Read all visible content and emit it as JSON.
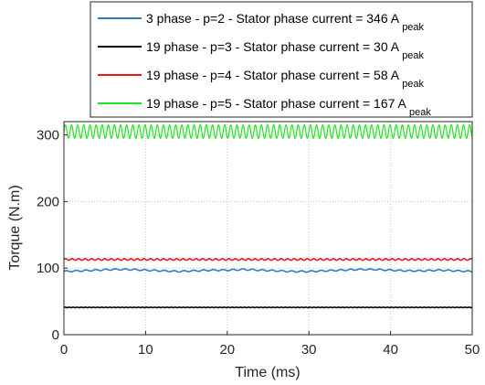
{
  "chart_data": {
    "type": "line",
    "title": "",
    "xlabel": "Time (ms)",
    "ylabel": "Torque (N.m)",
    "xlim": [
      0,
      50
    ],
    "ylim": [
      0,
      320
    ],
    "xticks": [
      0,
      10,
      20,
      30,
      40,
      50
    ],
    "yticks": [
      0,
      100,
      200,
      300
    ],
    "grid": true,
    "legend_position": "top",
    "series": [
      {
        "name": "3 phase - p=2 - Stator phase current = 346 A",
        "name_subscript": "peak",
        "color": "#2e7cbe",
        "x": [
          0,
          2,
          4,
          6,
          8,
          10,
          12,
          14,
          16,
          18,
          20,
          22,
          24,
          26,
          28,
          30,
          32,
          34,
          36,
          38,
          40,
          42,
          44,
          46,
          48,
          50
        ],
        "y": [
          95,
          96,
          97,
          98,
          98,
          97,
          96,
          95,
          96,
          97,
          97,
          98,
          97,
          96,
          95,
          95,
          96,
          97,
          98,
          98,
          97,
          96,
          96,
          97,
          96,
          95
        ]
      },
      {
        "name": "19 phase - p=3 - Stator phase current = 30 A",
        "name_subscript": "peak",
        "color": "#000000",
        "x": [
          0,
          10,
          20,
          30,
          40,
          50
        ],
        "y": [
          41,
          41,
          41,
          41,
          41,
          41
        ]
      },
      {
        "name": "19 phase - p=4 - Stator phase current = 58 A",
        "name_subscript": "peak",
        "color": "#e41a1c",
        "x": [
          0,
          10,
          20,
          30,
          40,
          50
        ],
        "y": [
          113,
          113,
          113,
          113,
          113,
          113
        ]
      },
      {
        "name": "19 phase - p=5 - Stator phase current = 167 A",
        "name_subscript": "peak",
        "color": "#1ee61e",
        "x": [
          0,
          10,
          20,
          30,
          40,
          50
        ],
        "y": [
          305,
          305,
          305,
          305,
          305,
          305
        ]
      }
    ]
  }
}
